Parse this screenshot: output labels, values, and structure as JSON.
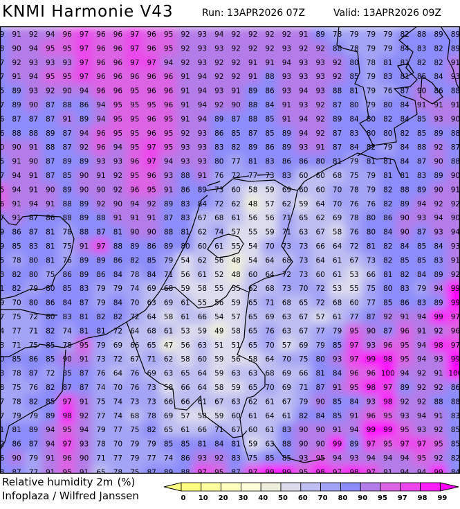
{
  "header": {
    "title": "KNMI Harmonie V43",
    "run": "Run: 13APR2026 07Z",
    "valid": "Valid: 13APR2026 09Z"
  },
  "variable": {
    "name": "Relative humidity 2m",
    "unit": "(%)"
  },
  "credit": "Infoplaza / Wilfred Janssen",
  "legend": {
    "labels": [
      "0",
      "10",
      "20",
      "30",
      "40",
      "50",
      "60",
      "70",
      "80",
      "90",
      "95",
      "97",
      "98",
      "99"
    ],
    "colors": [
      "#ffff80",
      "#ffff80",
      "#ffffa0",
      "#ffffc0",
      "#ffffdc",
      "#eeeedc",
      "#dcdcee",
      "#bebef2",
      "#a4a4f6",
      "#8c8cfa",
      "#b47ce8",
      "#dc64e4",
      "#ec46ec",
      "#fa1efa",
      "#ff00ff"
    ]
  },
  "grid_values": [
    [
      "89",
      "91",
      "92",
      "94",
      "96",
      "97",
      "96",
      "96",
      "97",
      "96",
      "95",
      "92",
      "93",
      "94",
      "92",
      "92",
      "92",
      "92",
      "91",
      "89",
      "78",
      "79",
      "79",
      "79",
      "82",
      "88",
      "89",
      "89"
    ],
    [
      "88",
      "90",
      "94",
      "95",
      "95",
      "97",
      "96",
      "96",
      "97",
      "96",
      "95",
      "92",
      "93",
      "93",
      "92",
      "92",
      "92",
      "93",
      "92",
      "92",
      "88",
      "78",
      "79",
      "79",
      "84",
      "83",
      "82",
      "89"
    ],
    [
      "87",
      "92",
      "93",
      "93",
      "93",
      "97",
      "96",
      "96",
      "97",
      "97",
      "94",
      "92",
      "93",
      "92",
      "92",
      "91",
      "91",
      "94",
      "93",
      "93",
      "92",
      "80",
      "78",
      "81",
      "81",
      "82",
      "82",
      "91"
    ],
    [
      "87",
      "91",
      "94",
      "95",
      "95",
      "97",
      "96",
      "96",
      "96",
      "96",
      "96",
      "91",
      "94",
      "92",
      "92",
      "91",
      "88",
      "93",
      "93",
      "93",
      "92",
      "85",
      "79",
      "83",
      "81",
      "85",
      "84",
      "93"
    ],
    [
      "85",
      "89",
      "93",
      "92",
      "90",
      "94",
      "96",
      "96",
      "95",
      "96",
      "96",
      "91",
      "94",
      "93",
      "91",
      "89",
      "86",
      "93",
      "94",
      "93",
      "88",
      "81",
      "79",
      "76",
      "87",
      "90",
      "86",
      "88"
    ],
    [
      "87",
      "89",
      "90",
      "87",
      "88",
      "86",
      "94",
      "95",
      "95",
      "95",
      "96",
      "91",
      "94",
      "92",
      "90",
      "88",
      "84",
      "91",
      "93",
      "92",
      "87",
      "80",
      "79",
      "80",
      "84",
      "91",
      "91",
      "91"
    ],
    [
      "86",
      "87",
      "87",
      "87",
      "91",
      "89",
      "94",
      "95",
      "95",
      "96",
      "95",
      "91",
      "94",
      "89",
      "87",
      "88",
      "85",
      "91",
      "94",
      "92",
      "89",
      "84",
      "80",
      "82",
      "84",
      "85",
      "93",
      "90"
    ],
    [
      "86",
      "88",
      "88",
      "89",
      "87",
      "94",
      "96",
      "95",
      "95",
      "96",
      "95",
      "92",
      "93",
      "86",
      "85",
      "87",
      "85",
      "89",
      "94",
      "92",
      "87",
      "83",
      "80",
      "80",
      "82",
      "85",
      "89",
      "88"
    ],
    [
      "90",
      "90",
      "91",
      "88",
      "87",
      "92",
      "96",
      "94",
      "95",
      "97",
      "95",
      "93",
      "93",
      "83",
      "82",
      "89",
      "86",
      "89",
      "93",
      "91",
      "87",
      "84",
      "82",
      "79",
      "84",
      "88",
      "92",
      "87"
    ],
    [
      "85",
      "91",
      "90",
      "87",
      "89",
      "89",
      "93",
      "93",
      "96",
      "97",
      "94",
      "93",
      "93",
      "80",
      "77",
      "81",
      "83",
      "86",
      "86",
      "80",
      "81",
      "79",
      "81",
      "81",
      "84",
      "87",
      "90",
      "88"
    ],
    [
      "87",
      "94",
      "91",
      "87",
      "85",
      "90",
      "91",
      "92",
      "95",
      "96",
      "93",
      "88",
      "91",
      "76",
      "72",
      "77",
      "73",
      "83",
      "60",
      "60",
      "68",
      "75",
      "79",
      "81",
      "81",
      "83",
      "89",
      "90"
    ],
    [
      "95",
      "94",
      "91",
      "90",
      "89",
      "90",
      "90",
      "92",
      "96",
      "95",
      "91",
      "86",
      "89",
      "73",
      "60",
      "58",
      "59",
      "69",
      "60",
      "60",
      "70",
      "78",
      "79",
      "82",
      "88",
      "89",
      "90",
      "91"
    ],
    [
      "96",
      "91",
      "94",
      "91",
      "88",
      "89",
      "92",
      "90",
      "94",
      "92",
      "89",
      "83",
      "84",
      "72",
      "62",
      "48",
      "57",
      "62",
      "59",
      "64",
      "70",
      "76",
      "76",
      "82",
      "89",
      "94",
      "92",
      "92"
    ],
    [
      "87",
      "91",
      "87",
      "86",
      "88",
      "89",
      "88",
      "91",
      "91",
      "91",
      "87",
      "83",
      "67",
      "68",
      "61",
      "56",
      "56",
      "71",
      "65",
      "62",
      "69",
      "78",
      "80",
      "86",
      "90",
      "93",
      "94",
      "90"
    ],
    [
      "89",
      "86",
      "87",
      "81",
      "78",
      "88",
      "87",
      "81",
      "90",
      "90",
      "88",
      "81",
      "62",
      "74",
      "57",
      "55",
      "59",
      "71",
      "63",
      "67",
      "58",
      "76",
      "80",
      "84",
      "90",
      "87",
      "93",
      "94"
    ],
    [
      "89",
      "85",
      "83",
      "81",
      "75",
      "91",
      "97",
      "88",
      "89",
      "86",
      "89",
      "80",
      "60",
      "61",
      "55",
      "54",
      "70",
      "73",
      "73",
      "66",
      "64",
      "72",
      "81",
      "82",
      "84",
      "85",
      "84",
      "93"
    ],
    [
      "85",
      "78",
      "80",
      "81",
      "76",
      "89",
      "89",
      "86",
      "82",
      "85",
      "79",
      "54",
      "62",
      "56",
      "48",
      "54",
      "64",
      "68",
      "73",
      "64",
      "61",
      "67",
      "73",
      "82",
      "85",
      "85",
      "83",
      "91"
    ],
    [
      "83",
      "82",
      "80",
      "75",
      "86",
      "89",
      "86",
      "84",
      "78",
      "84",
      "71",
      "56",
      "61",
      "52",
      "48",
      "60",
      "64",
      "72",
      "73",
      "60",
      "61",
      "53",
      "66",
      "81",
      "82",
      "84",
      "89",
      "92"
    ],
    [
      "81",
      "82",
      "79",
      "80",
      "85",
      "83",
      "79",
      "79",
      "74",
      "69",
      "68",
      "59",
      "58",
      "55",
      "55",
      "62",
      "68",
      "73",
      "70",
      "72",
      "53",
      "55",
      "75",
      "80",
      "83",
      "79",
      "94",
      "99"
    ],
    [
      "79",
      "70",
      "80",
      "86",
      "84",
      "87",
      "79",
      "84",
      "70",
      "63",
      "69",
      "61",
      "55",
      "56",
      "59",
      "65",
      "71",
      "68",
      "65",
      "72",
      "68",
      "60",
      "77",
      "85",
      "86",
      "83",
      "89",
      "99"
    ],
    [
      "77",
      "75",
      "72",
      "80",
      "83",
      "81",
      "82",
      "82",
      "72",
      "64",
      "58",
      "61",
      "66",
      "54",
      "57",
      "65",
      "69",
      "63",
      "67",
      "57",
      "61",
      "77",
      "87",
      "92",
      "91",
      "94",
      "99",
      "97"
    ],
    [
      "74",
      "77",
      "71",
      "82",
      "74",
      "81",
      "81",
      "72",
      "64",
      "68",
      "61",
      "53",
      "59",
      "49",
      "58",
      "65",
      "76",
      "63",
      "67",
      "77",
      "79",
      "95",
      "90",
      "87",
      "96",
      "91",
      "92",
      "96"
    ],
    [
      "73",
      "71",
      "75",
      "85",
      "78",
      "95",
      "79",
      "69",
      "66",
      "65",
      "47",
      "56",
      "63",
      "51",
      "51",
      "65",
      "70",
      "57",
      "69",
      "79",
      "85",
      "97",
      "93",
      "96",
      "95",
      "94",
      "98",
      "97"
    ],
    [
      "80",
      "85",
      "86",
      "85",
      "90",
      "91",
      "73",
      "72",
      "67",
      "71",
      "62",
      "58",
      "60",
      "59",
      "56",
      "58",
      "64",
      "70",
      "75",
      "80",
      "93",
      "97",
      "99",
      "98",
      "95",
      "94",
      "93",
      "99"
    ],
    [
      "83",
      "78",
      "87",
      "72",
      "85",
      "87",
      "76",
      "64",
      "76",
      "69",
      "63",
      "65",
      "64",
      "59",
      "63",
      "63",
      "68",
      "69",
      "66",
      "81",
      "84",
      "96",
      "96",
      "100",
      "94",
      "92",
      "91",
      "100"
    ],
    [
      "78",
      "75",
      "76",
      "82",
      "87",
      "87",
      "74",
      "70",
      "76",
      "73",
      "58",
      "66",
      "64",
      "58",
      "59",
      "65",
      "70",
      "69",
      "71",
      "87",
      "91",
      "95",
      "98",
      "97",
      "89",
      "92",
      "92",
      "86"
    ],
    [
      "77",
      "78",
      "82",
      "85",
      "97",
      "91",
      "75",
      "74",
      "73",
      "73",
      "66",
      "66",
      "61",
      "67",
      "63",
      "62",
      "61",
      "67",
      "79",
      "90",
      "85",
      "84",
      "93",
      "98",
      "92",
      "92",
      "88",
      "88"
    ],
    [
      "77",
      "79",
      "79",
      "89",
      "98",
      "92",
      "77",
      "74",
      "68",
      "78",
      "69",
      "57",
      "58",
      "59",
      "60",
      "61",
      "64",
      "61",
      "82",
      "84",
      "85",
      "91",
      "96",
      "95",
      "93",
      "94",
      "91",
      "83"
    ],
    [
      "81",
      "81",
      "89",
      "94",
      "95",
      "94",
      "79",
      "77",
      "75",
      "82",
      "65",
      "61",
      "66",
      "71",
      "67",
      "60",
      "61",
      "83",
      "90",
      "90",
      "91",
      "94",
      "99",
      "99",
      "95",
      "93",
      "92",
      "85"
    ],
    [
      "82",
      "86",
      "87",
      "94",
      "97",
      "93",
      "78",
      "70",
      "79",
      "79",
      "85",
      "85",
      "81",
      "84",
      "81",
      "59",
      "63",
      "88",
      "90",
      "90",
      "99",
      "89",
      "97",
      "95",
      "97",
      "97",
      "95",
      "85"
    ],
    [
      "86",
      "90",
      "79",
      "91",
      "96",
      "90",
      "71",
      "77",
      "79",
      "77",
      "74",
      "86",
      "93",
      "92",
      "83",
      "75",
      "85",
      "85",
      "93",
      "95",
      "94",
      "93",
      "94",
      "94",
      "94",
      "95",
      "92",
      "82"
    ],
    [
      "88",
      "87",
      "77",
      "91",
      "95",
      "91",
      "65",
      "78",
      "75",
      "87",
      "89",
      "88",
      "97",
      "95",
      "87",
      "97",
      "99",
      "99",
      "95",
      "98",
      "97",
      "98",
      "97",
      "91",
      "94",
      "94",
      "99",
      "84"
    ]
  ]
}
